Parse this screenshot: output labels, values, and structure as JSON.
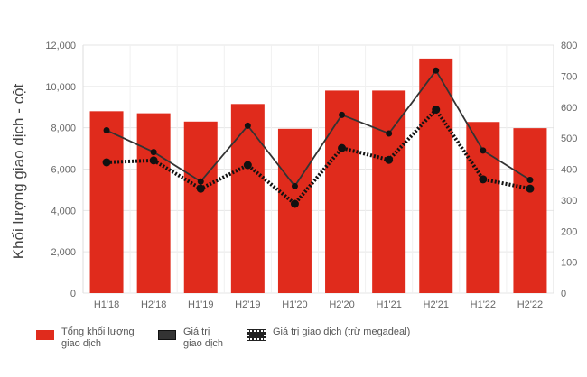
{
  "chart_data": {
    "type": "bar",
    "categories": [
      "H1'18",
      "H2'18",
      "H1'19",
      "H2'19",
      "H1'20",
      "H2'20",
      "H1'21",
      "H2'21",
      "H1'22",
      "H2'22"
    ],
    "ylabel": "Khối lượng giao dịch - cột",
    "ylim": [
      0,
      12000
    ],
    "y_ticks": [
      "0",
      "2,000",
      "4,000",
      "6,000",
      "8,000",
      "10,000",
      "12,000"
    ],
    "y2lim": [
      0,
      800
    ],
    "y2_ticks": [
      "0",
      "100",
      "200",
      "300",
      "400",
      "500",
      "600",
      "700",
      "800"
    ],
    "grid": true,
    "legend_position": "bottom",
    "series": [
      {
        "name": "Tổng khối lượng giao dịch",
        "type": "bar",
        "axis": "left",
        "color": "#e02b1c",
        "values": [
          8800,
          8700,
          8300,
          9150,
          7950,
          9800,
          9800,
          11350,
          8280,
          7980
        ]
      },
      {
        "name": "Giá trị giao dịch",
        "type": "line",
        "axis": "right",
        "color": "#333333",
        "values": [
          525,
          455,
          360,
          540,
          345,
          575,
          515,
          718,
          460,
          365
        ]
      },
      {
        "name": "Giá trị giao dịch (trừ megadeal)",
        "type": "line-dotted",
        "axis": "right",
        "color": "#111111",
        "values": [
          422,
          428,
          337,
          413,
          288,
          468,
          430,
          592,
          367,
          337
        ]
      }
    ]
  },
  "legend": {
    "bar_line1": "Tổng khối lượng",
    "bar_line2": "giao dịch",
    "line_line1": "Giá trị",
    "line_line2": "giao dịch",
    "dotted": "Giá trị giao dịch (trừ megadeal)"
  }
}
